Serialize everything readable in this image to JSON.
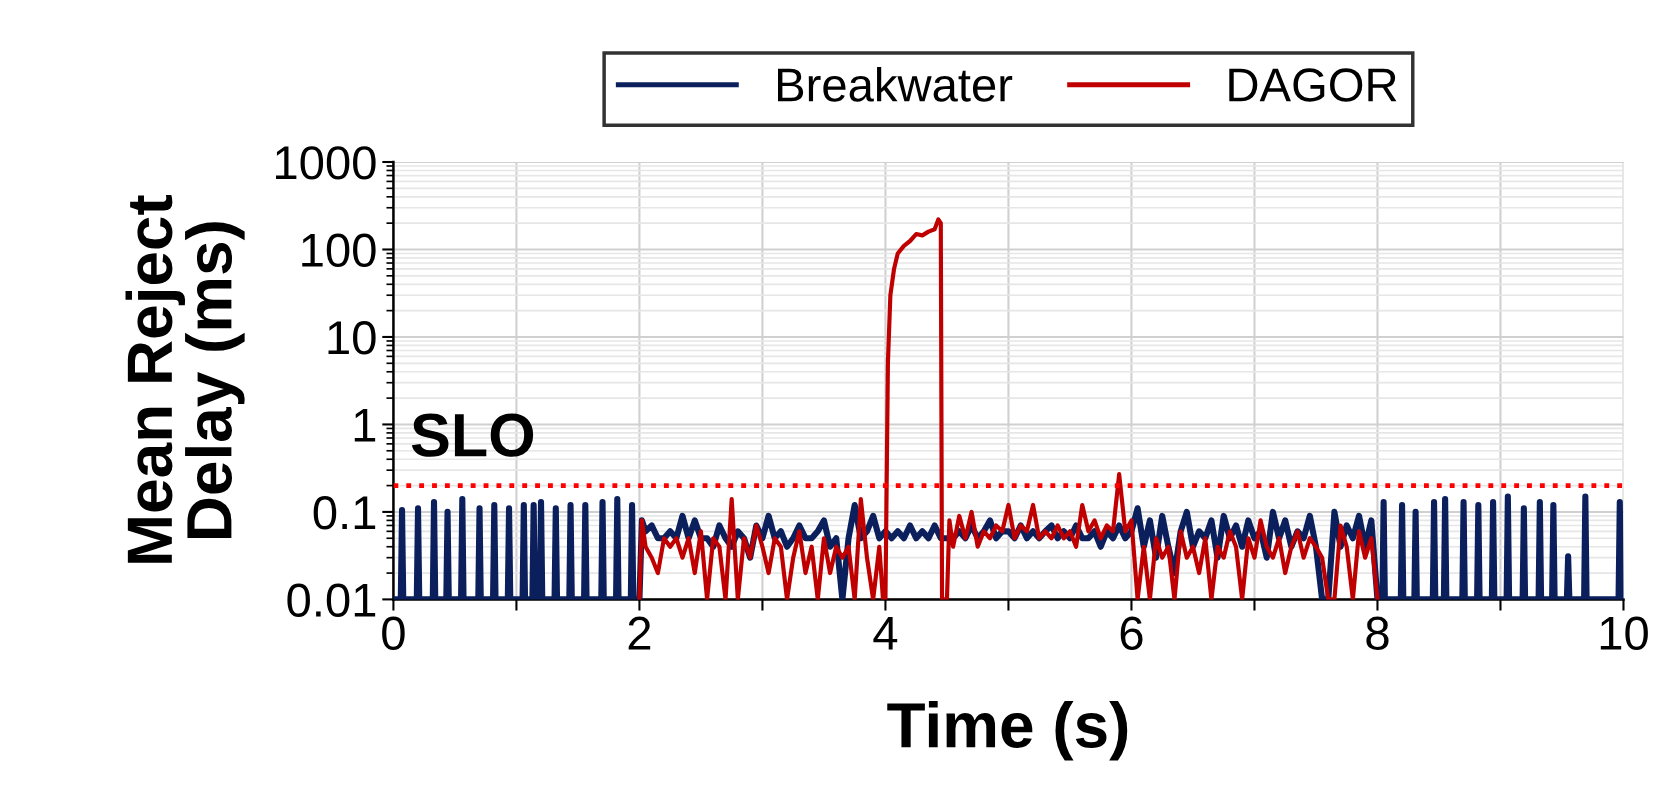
{
  "chart_data": {
    "type": "line",
    "xlabel": "Time (s)",
    "ylabel": "Mean Reject\nDelay (ms)",
    "log": "y",
    "grid": true,
    "legend": "top",
    "line_style": "solid",
    "xlim": [
      0,
      10
    ],
    "xticks": [
      0,
      {
        "value": 1,
        "label": null
      },
      2,
      {
        "value": 3,
        "label": null
      },
      4,
      {
        "value": 5,
        "label": null
      },
      6,
      {
        "value": 7,
        "label": null
      },
      8,
      {
        "value": 9,
        "label": null
      },
      10
    ],
    "ylim": [
      0.01,
      1000
    ],
    "yticks": [
      0.01,
      0.1,
      1,
      10,
      100,
      1000
    ],
    "ref_lines": [
      {
        "axis": "y",
        "value": 0.2,
        "label": "SLO",
        "color": "#ff0000",
        "line_style": "dotted"
      }
    ],
    "series": [
      {
        "name": "Breakwater",
        "color": "#0a1f5c",
        "x": [
          0,
          0.06,
          0.07,
          0.08,
          0.19,
          0.2,
          0.21,
          0.32,
          0.33,
          0.34,
          0.43,
          0.44,
          0.45,
          0.55,
          0.56,
          0.57,
          0.69,
          0.7,
          0.71,
          0.81,
          0.82,
          0.83,
          0.93,
          0.94,
          0.95,
          1.05,
          1.06,
          1.07,
          1.13,
          1.14,
          1.15,
          1.19,
          1.2,
          1.21,
          1.31,
          1.32,
          1.33,
          1.43,
          1.44,
          1.45,
          1.55,
          1.56,
          1.57,
          1.69,
          1.7,
          1.71,
          1.81,
          1.82,
          1.83,
          1.93,
          1.94,
          1.95,
          2.0,
          2.02,
          2.05,
          2.1,
          2.15,
          2.2,
          2.25,
          2.3,
          2.35,
          2.4,
          2.45,
          2.5,
          2.55,
          2.6,
          2.65,
          2.7,
          2.75,
          2.8,
          2.85,
          2.9,
          2.95,
          3.0,
          3.05,
          3.1,
          3.15,
          3.2,
          3.25,
          3.3,
          3.35,
          3.4,
          3.45,
          3.5,
          3.55,
          3.6,
          3.65,
          3.7,
          3.75,
          3.8,
          3.85,
          3.9,
          3.95,
          4.0,
          4.05,
          4.1,
          4.15,
          4.2,
          4.25,
          4.3,
          4.35,
          4.4,
          4.45,
          4.5,
          4.55,
          4.6,
          4.65,
          4.7,
          4.75,
          4.8,
          4.85,
          4.9,
          4.95,
          5.0,
          5.05,
          5.1,
          5.15,
          5.2,
          5.25,
          5.3,
          5.35,
          5.4,
          5.45,
          5.5,
          5.55,
          5.6,
          5.65,
          5.7,
          5.75,
          5.8,
          5.85,
          5.9,
          5.95,
          6.0,
          6.05,
          6.1,
          6.15,
          6.2,
          6.25,
          6.3,
          6.35,
          6.4,
          6.45,
          6.5,
          6.55,
          6.6,
          6.65,
          6.7,
          6.75,
          6.8,
          6.85,
          6.9,
          6.95,
          7.0,
          7.05,
          7.1,
          7.15,
          7.2,
          7.25,
          7.3,
          7.35,
          7.4,
          7.45,
          7.5,
          7.55,
          7.6,
          7.65,
          7.7,
          7.75,
          7.8,
          7.85,
          7.9,
          7.95,
          8.0,
          8.04,
          8.05,
          8.06,
          8.19,
          8.2,
          8.21,
          8.3,
          8.31,
          8.32,
          8.45,
          8.46,
          8.47,
          8.54,
          8.55,
          8.56,
          8.69,
          8.7,
          8.71,
          8.81,
          8.82,
          8.83,
          8.93,
          8.94,
          8.95,
          9.05,
          9.06,
          9.07,
          9.18,
          9.19,
          9.2,
          9.31,
          9.32,
          9.33,
          9.42,
          9.43,
          9.44,
          9.54,
          9.55,
          9.56,
          9.68,
          9.69,
          9.7,
          9.96,
          9.97,
          9.98
        ],
        "values": [
          0.01,
          0.01,
          0.105,
          0.01,
          0.01,
          0.11,
          0.01,
          0.01,
          0.13,
          0.01,
          0.01,
          0.1,
          0.01,
          0.01,
          0.14,
          0.01,
          0.01,
          0.11,
          0.01,
          0.01,
          0.12,
          0.01,
          0.01,
          0.11,
          0.01,
          0.01,
          0.12,
          0.01,
          0.01,
          0.12,
          0.01,
          0.01,
          0.13,
          0.01,
          0.01,
          0.11,
          0.01,
          0.01,
          0.12,
          0.01,
          0.01,
          0.12,
          0.01,
          0.01,
          0.13,
          0.01,
          0.01,
          0.14,
          0.01,
          0.01,
          0.12,
          0.01,
          0.01,
          0.08,
          0.06,
          0.07,
          0.05,
          0.05,
          0.06,
          0.05,
          0.09,
          0.05,
          0.08,
          0.05,
          0.05,
          0.04,
          0.07,
          0.05,
          0.04,
          0.06,
          0.05,
          0.03,
          0.07,
          0.05,
          0.09,
          0.05,
          0.06,
          0.04,
          0.05,
          0.07,
          0.05,
          0.05,
          0.06,
          0.08,
          0.04,
          0.05,
          0.01,
          0.05,
          0.12,
          0.05,
          0.06,
          0.09,
          0.05,
          0.06,
          0.05,
          0.06,
          0.05,
          0.07,
          0.05,
          0.06,
          0.05,
          0.07,
          0.05,
          0.05,
          0.05,
          0.06,
          0.05,
          0.07,
          0.05,
          0.06,
          0.08,
          0.05,
          0.06,
          0.06,
          0.05,
          0.07,
          0.05,
          0.06,
          0.05,
          0.06,
          0.07,
          0.05,
          0.06,
          0.05,
          0.07,
          0.05,
          0.05,
          0.06,
          0.04,
          0.06,
          0.05,
          0.07,
          0.05,
          0.06,
          0.11,
          0.04,
          0.08,
          0.03,
          0.09,
          0.04,
          0.02,
          0.06,
          0.1,
          0.04,
          0.06,
          0.05,
          0.08,
          0.03,
          0.09,
          0.05,
          0.07,
          0.04,
          0.08,
          0.05,
          0.06,
          0.03,
          0.1,
          0.05,
          0.08,
          0.04,
          0.06,
          0.05,
          0.09,
          0.04,
          0.01,
          0.01,
          0.1,
          0.04,
          0.07,
          0.05,
          0.09,
          0.04,
          0.08,
          0.01,
          0.01,
          0.13,
          0.01,
          0.01,
          0.12,
          0.01,
          0.01,
          0.1,
          0.01,
          0.01,
          0.13,
          0.01,
          0.01,
          0.14,
          0.01,
          0.01,
          0.13,
          0.01,
          0.01,
          0.12,
          0.01,
          0.01,
          0.13,
          0.01,
          0.01,
          0.15,
          0.01,
          0.01,
          0.11,
          0.01,
          0.01,
          0.13,
          0.01,
          0.01,
          0.12,
          0.01,
          0.01,
          0.031,
          0.01,
          0.01,
          0.15,
          0.01,
          0.01,
          0.13,
          0.01
        ]
      },
      {
        "name": "DAGOR",
        "color": "#c00000",
        "x": [
          2.0,
          2.02,
          2.05,
          2.1,
          2.15,
          2.2,
          2.25,
          2.3,
          2.35,
          2.4,
          2.45,
          2.5,
          2.55,
          2.6,
          2.65,
          2.7,
          2.75,
          2.8,
          2.85,
          2.9,
          2.95,
          3.0,
          3.05,
          3.1,
          3.15,
          3.2,
          3.25,
          3.3,
          3.35,
          3.4,
          3.45,
          3.5,
          3.55,
          3.6,
          3.65,
          3.7,
          3.75,
          3.8,
          3.85,
          3.9,
          3.95,
          3.98,
          4.0,
          4.02,
          4.04,
          4.07,
          4.1,
          4.15,
          4.2,
          4.25,
          4.3,
          4.35,
          4.4,
          4.43,
          4.45,
          4.46,
          4.5,
          4.52,
          4.55,
          4.6,
          4.65,
          4.7,
          4.75,
          4.8,
          4.85,
          4.9,
          4.95,
          5.0,
          5.05,
          5.1,
          5.15,
          5.2,
          5.25,
          5.3,
          5.35,
          5.4,
          5.45,
          5.5,
          5.55,
          5.6,
          5.65,
          5.7,
          5.75,
          5.8,
          5.85,
          5.9,
          5.95,
          6.0,
          6.05,
          6.1,
          6.15,
          6.2,
          6.25,
          6.3,
          6.35,
          6.4,
          6.45,
          6.5,
          6.55,
          6.6,
          6.65,
          6.7,
          6.75,
          6.8,
          6.85,
          6.9,
          6.95,
          7.0,
          7.05,
          7.1,
          7.15,
          7.2,
          7.25,
          7.3,
          7.35,
          7.4,
          7.45,
          7.5,
          7.55,
          7.6,
          7.65,
          7.7,
          7.75,
          7.8,
          7.85,
          7.9,
          7.95,
          8.0
        ],
        "values": [
          0.01,
          0.08,
          0.04,
          0.03,
          0.02,
          0.05,
          0.04,
          0.05,
          0.03,
          0.05,
          0.02,
          0.06,
          0.01,
          0.05,
          0.04,
          0.01,
          0.14,
          0.01,
          0.05,
          0.03,
          0.07,
          0.04,
          0.02,
          0.05,
          0.04,
          0.01,
          0.03,
          0.06,
          0.02,
          0.04,
          0.01,
          0.05,
          0.02,
          0.04,
          0.03,
          0.04,
          0.01,
          0.14,
          0.03,
          0.01,
          0.04,
          0.01,
          0.01,
          5,
          30,
          60,
          90,
          110,
          125,
          150,
          145,
          160,
          170,
          220,
          200,
          0.01,
          0.01,
          0.08,
          0.04,
          0.09,
          0.05,
          0.1,
          0.04,
          0.06,
          0.05,
          0.07,
          0.06,
          0.12,
          0.05,
          0.07,
          0.06,
          0.12,
          0.05,
          0.06,
          0.05,
          0.07,
          0.05,
          0.06,
          0.04,
          0.12,
          0.06,
          0.08,
          0.05,
          0.07,
          0.06,
          0.27,
          0.06,
          0.08,
          0.01,
          0.04,
          0.01,
          0.05,
          0.03,
          0.04,
          0.01,
          0.06,
          0.03,
          0.04,
          0.02,
          0.05,
          0.01,
          0.04,
          0.03,
          0.06,
          0.04,
          0.01,
          0.05,
          0.03,
          0.08,
          0.04,
          0.03,
          0.05,
          0.02,
          0.04,
          0.06,
          0.03,
          0.05,
          0.04,
          0.03,
          0.01,
          0.01,
          0.07,
          0.04,
          0.01,
          0.06,
          0.03,
          0.05,
          0.01
        ]
      }
    ]
  }
}
